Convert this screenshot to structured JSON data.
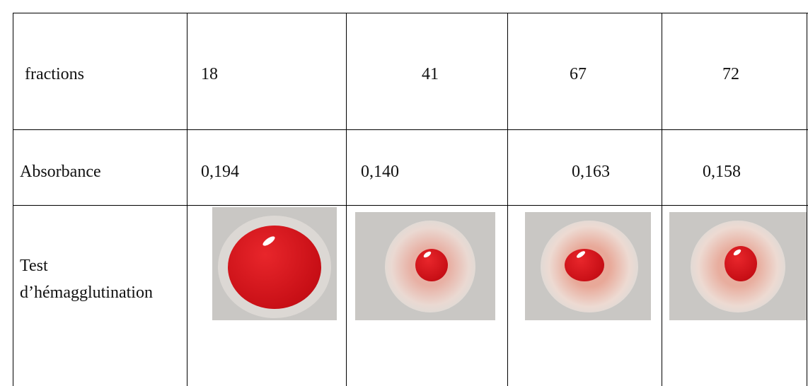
{
  "table": {
    "rows": [
      [
        "fractions",
        "18",
        "41",
        "67",
        "72"
      ],
      [
        "Absorbance",
        "0,194",
        "0,140",
        "0,163",
        "0,158"
      ],
      [
        "Test d’hémagglutination"
      ]
    ]
  }
}
